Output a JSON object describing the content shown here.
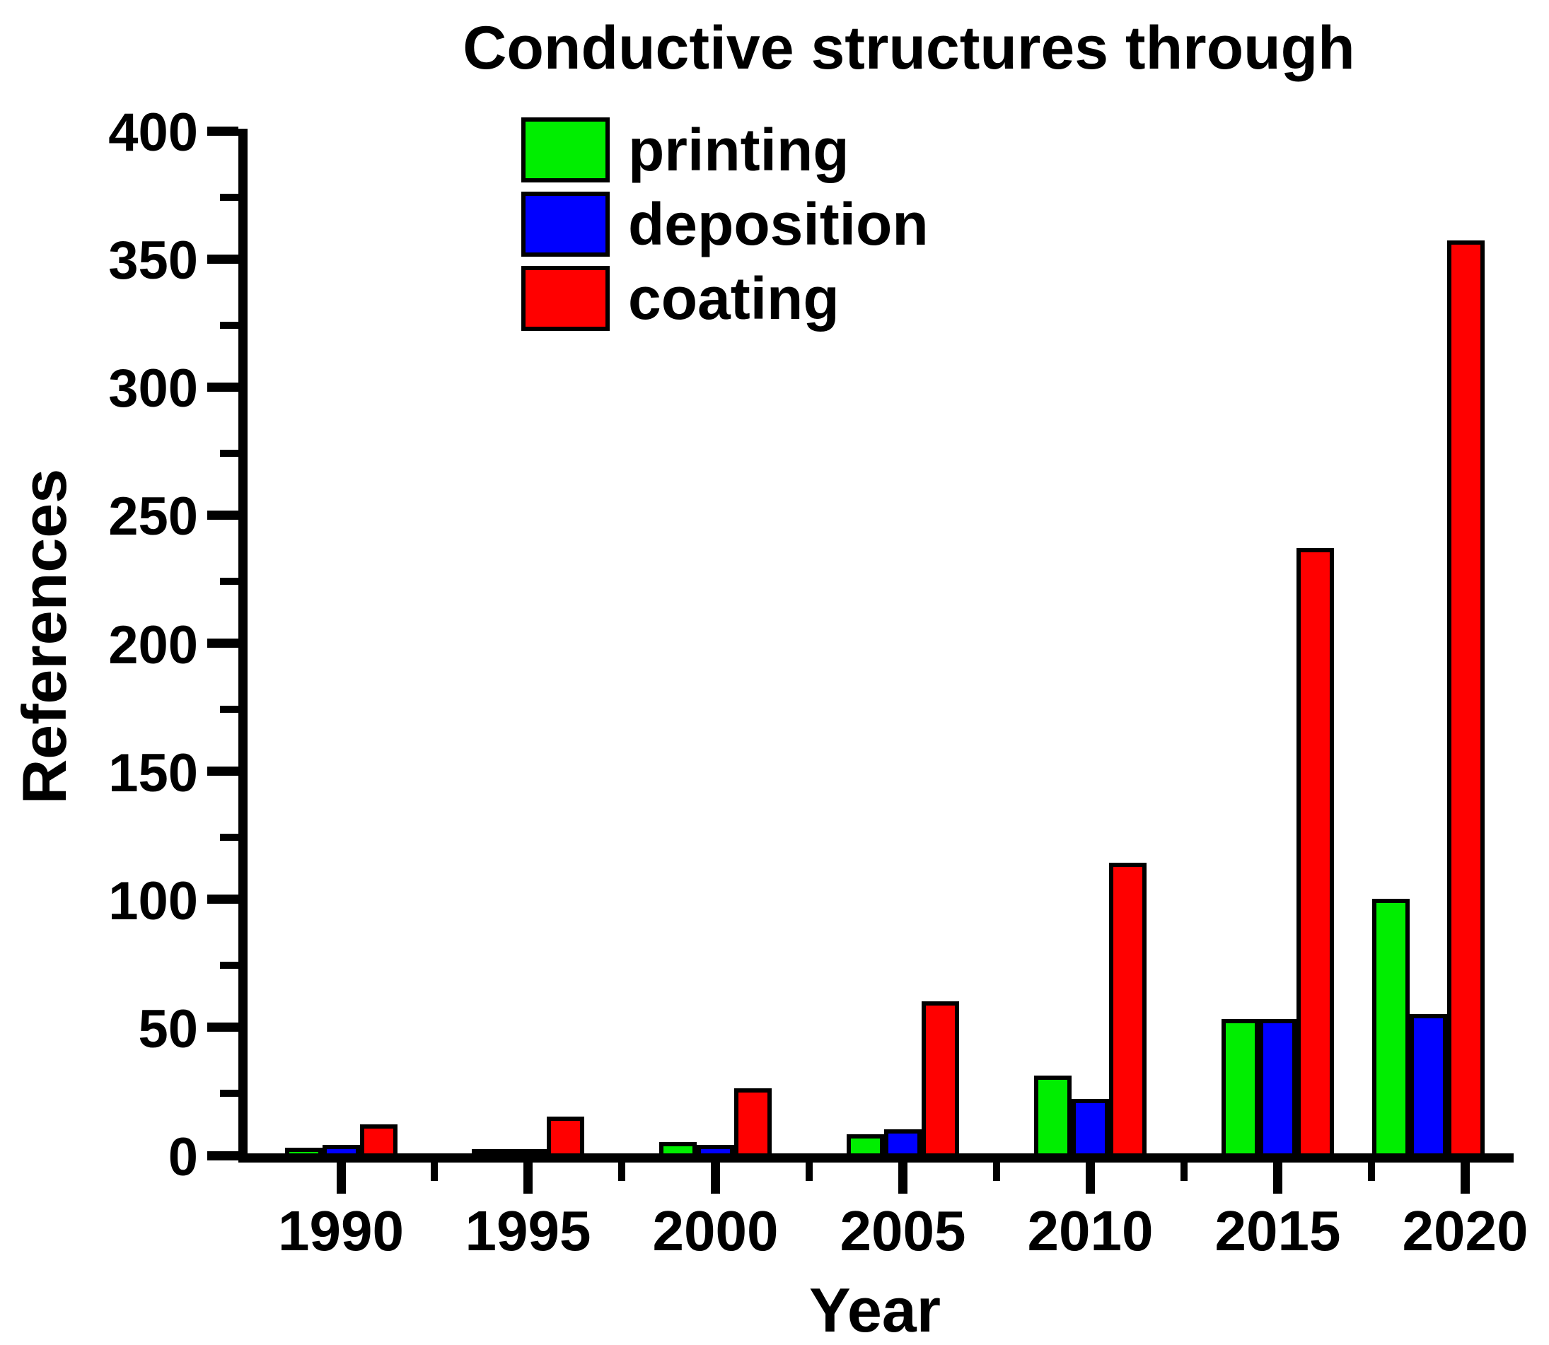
{
  "title": "Conductive structures through",
  "legend": {
    "position": "top-left-inside",
    "items": [
      {
        "label": "printing",
        "color": "#00ee00"
      },
      {
        "label": "deposition",
        "color": "#0000ff"
      },
      {
        "label": "coating",
        "color": "#ff0000"
      }
    ]
  },
  "chart_data": {
    "type": "bar",
    "title": "Conductive structures through",
    "xlabel": "Year",
    "ylabel": "References",
    "categories": [
      "1990",
      "1995",
      "2000",
      "2005",
      "2010",
      "2015",
      "2020"
    ],
    "series": [
      {
        "name": "printing",
        "color": "#00ee00",
        "values": [
          4,
          1,
          6,
          9,
          32,
          54,
          101
        ]
      },
      {
        "name": "deposition",
        "color": "#0000ff",
        "values": [
          5,
          1,
          5,
          11,
          23,
          54,
          56
        ]
      },
      {
        "name": "coating",
        "color": "#ff0000",
        "values": [
          13,
          16,
          27,
          61,
          115,
          238,
          358
        ]
      }
    ],
    "ylim": [
      0,
      400
    ],
    "yticks": [
      0,
      50,
      100,
      150,
      200,
      250,
      300,
      350,
      400
    ],
    "minor_tick_step": 25,
    "grid": false,
    "legend_position": "top-left-inside"
  }
}
